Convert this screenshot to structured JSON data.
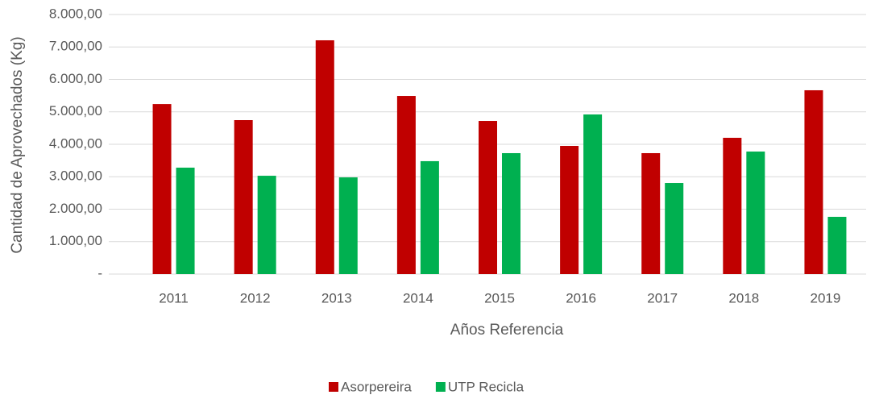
{
  "chart_data": {
    "type": "bar",
    "x_label": "Años Referencia",
    "y_label": "Cantidad de Aprovechados (Kg)",
    "categories": [
      "2011",
      "2012",
      "2013",
      "2014",
      "2015",
      "2016",
      "2017",
      "2018",
      "2019"
    ],
    "series": [
      {
        "name": "Asorpereira",
        "color": "#c00000",
        "values": [
          5240,
          4745,
          7205,
          5490,
          4720,
          3950,
          3727,
          4200,
          5665
        ]
      },
      {
        "name": "UTP Recicla",
        "color": "#00b050",
        "values": [
          3280,
          3030,
          2980,
          3480,
          3727,
          4920,
          2807,
          3776,
          1764
        ]
      }
    ],
    "ylim": [
      0,
      8000
    ],
    "yticks": [
      {
        "value": 0,
        "label": "-"
      },
      {
        "value": 1000,
        "label": "1.000,00"
      },
      {
        "value": 2000,
        "label": "2.000,00"
      },
      {
        "value": 3000,
        "label": "3.000,00"
      },
      {
        "value": 4000,
        "label": "4.000,00"
      },
      {
        "value": 5000,
        "label": "5.000,00"
      },
      {
        "value": 6000,
        "label": "6.000,00"
      },
      {
        "value": 7000,
        "label": "7.000,00"
      },
      {
        "value": 8000,
        "label": "8.000,00"
      }
    ],
    "grid": true,
    "legend": "bottom"
  }
}
